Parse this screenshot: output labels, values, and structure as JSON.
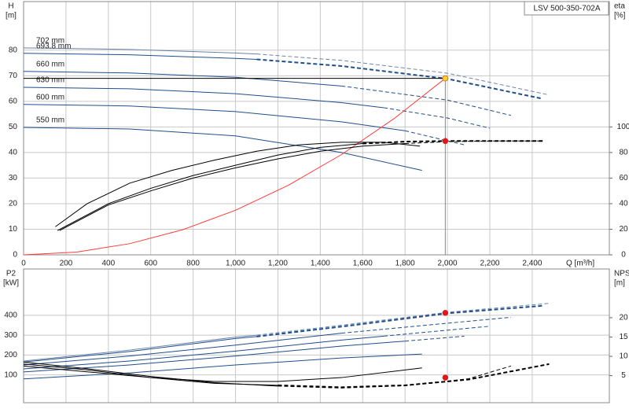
{
  "chart_data": [
    {
      "type": "line",
      "title": "LSV 500-350-702A",
      "ylabel": "H",
      "yunit": "[m]",
      "y2label": "eta",
      "y2unit": "[%]",
      "xlabel": "Q [m³/h]",
      "xlim": [
        0,
        2764
      ],
      "xtick_labels": true,
      "xticks": [
        0,
        200,
        400,
        600,
        800,
        {
          "value": 1000,
          "label": "1,000"
        },
        {
          "value": 1200,
          "label": "1,200"
        },
        {
          "value": 1400,
          "label": "1,400"
        },
        {
          "value": 1600,
          "label": "1,600"
        },
        {
          "value": 1800,
          "label": "1,800"
        },
        {
          "value": 2000,
          "label": "2,000"
        },
        {
          "value": 2200,
          "label": "2,200"
        },
        {
          "value": 2400,
          "label": "2,400"
        }
      ],
      "ylim": [
        0,
        99
      ],
      "yticks": [
        0,
        10,
        20,
        30,
        40,
        50,
        60,
        70,
        80
      ],
      "y2lim": [
        0,
        198
      ],
      "y2ticks": [
        0,
        20,
        40,
        60,
        80,
        100
      ],
      "grid": true,
      "series": [
        {
          "name": "702 mm",
          "color": "#6a84a8",
          "segments": [
            {
              "dash": false,
              "x": [
                0,
                500,
                1000,
                1100
              ],
              "values": [
                80.9,
                80.3,
                78.9,
                78.5
              ]
            },
            {
              "dash": true,
              "x": [
                1100,
                1500,
                2000,
                2480
              ],
              "values": [
                78.5,
                76,
                71,
                62.5
              ]
            }
          ]
        },
        {
          "name": "693.8 mm",
          "color": "#1f4e8c",
          "segments": [
            {
              "dash": false,
              "x": [
                0,
                500,
                1000,
                1100
              ],
              "values": [
                78.8,
                78.2,
                76.8,
                76.4
              ]
            },
            {
              "dash": true,
              "width": 2,
              "x": [
                1100,
                1500,
                2000,
                2450
              ],
              "values": [
                76.4,
                73.8,
                68.8,
                61
              ]
            }
          ]
        },
        {
          "name": "660 mm",
          "color": "#1f4e8c",
          "segments": [
            {
              "dash": false,
              "x": [
                0,
                500,
                1000,
                1500
              ],
              "values": [
                71.7,
                71.1,
                69.4,
                66
              ]
            },
            {
              "dash": true,
              "x": [
                1500,
                2000,
                2300
              ],
              "values": [
                66,
                60.5,
                54.5
              ]
            }
          ]
        },
        {
          "name": "630 mm",
          "color": "#1f4e8c",
          "segments": [
            {
              "dash": false,
              "x": [
                0,
                500,
                1000,
                1500,
                1700
              ],
              "values": [
                65.5,
                64.9,
                63,
                59.5,
                57.5
              ]
            },
            {
              "dash": true,
              "x": [
                1700,
                2000,
                2200
              ],
              "values": [
                57.5,
                53.5,
                49.5
              ]
            }
          ]
        },
        {
          "name": "600 mm",
          "color": "#1f4e8c",
          "segments": [
            {
              "dash": false,
              "x": [
                0,
                500,
                1000,
                1500,
                1800
              ],
              "values": [
                58.8,
                58.2,
                56,
                52,
                48.5
              ]
            },
            {
              "dash": true,
              "x": [
                1800,
                2080
              ],
              "values": [
                48.5,
                43
              ]
            }
          ]
        },
        {
          "name": "550 mm",
          "color": "#1f4e8c",
          "x": [
            0,
            500,
            1000,
            1500,
            1880
          ],
          "values": [
            49.8,
            49.2,
            46.5,
            40,
            33
          ]
        },
        {
          "color": "#ff3b3b",
          "x": [
            0,
            250,
            500,
            750,
            1000,
            1250,
            1500,
            1750,
            1990
          ],
          "values": [
            0,
            1.09,
            4.36,
            9.8,
            17.42,
            27.22,
            39.2,
            53.36,
            69
          ]
        },
        {
          "color": "#000000",
          "x": [
            0,
            1990
          ],
          "values": [
            69,
            69
          ]
        },
        {
          "color": "#888888",
          "x": [
            1990,
            1990
          ],
          "values": [
            69,
            0
          ]
        },
        {
          "color": "#000000",
          "axis": "y2",
          "x": [
            150,
            300,
            500,
            700,
            900,
            1100,
            1300,
            1500,
            1700,
            1870
          ],
          "values": [
            22,
            40,
            56,
            66,
            74,
            81,
            86,
            88,
            88,
            85
          ]
        },
        {
          "color": "#000000",
          "axis": "y2",
          "segments": [
            {
              "dash": false,
              "x": [
                160,
                400,
                600,
                800,
                1000,
                1200,
                1400,
                1600
              ],
              "values": [
                19,
                40,
                52,
                62,
                70,
                78,
                84,
                87
              ]
            },
            {
              "dash": true,
              "width": 2,
              "x": [
                1600,
                1800,
                2000,
                2200,
                2450
              ],
              "values": [
                87,
                88.5,
                89,
                89,
                89
              ]
            }
          ]
        },
        {
          "color": "#000000",
          "axis": "y2",
          "segments": [
            {
              "dash": false,
              "x": [
                170,
                400,
                600,
                800,
                1000,
                1200,
                1400,
                1600,
                1800
              ],
              "values": [
                19,
                39,
                50,
                60,
                68,
                75,
                81,
                85,
                87
              ]
            },
            {
              "dash": true,
              "x": [
                1800,
                2000,
                2200,
                2450
              ],
              "values": [
                87,
                88.5,
                89,
                89
              ]
            }
          ]
        }
      ],
      "markers": [
        {
          "x": 1990,
          "y": 69,
          "color": "#ffd21f"
        },
        {
          "x": 1990,
          "y": 89,
          "axis": "y2",
          "color": "#e8121e"
        }
      ]
    },
    {
      "type": "line",
      "ylabel": "P2",
      "yunit": "[kW]",
      "y2label": "NPSH",
      "y2unit": "[m]",
      "xlim": [
        0,
        2764
      ],
      "xtick_labels": false,
      "xticks": [
        0,
        200,
        400,
        600,
        800,
        1000,
        1200,
        1400,
        1600,
        1800,
        2000,
        2200,
        2400
      ],
      "ylim": [
        -40,
        633
      ],
      "yticks": [
        100,
        200,
        300,
        400
      ],
      "y2lim": [
        -2,
        32.6
      ],
      "y2ticks": [
        5,
        10,
        15,
        20
      ],
      "grid": true,
      "series": [
        {
          "color": "#6a84a8",
          "segments": [
            {
              "dash": false,
              "x": [
                0,
                500,
                1000,
                1100
              ],
              "values": [
                170,
                225,
                290,
                300
              ]
            },
            {
              "dash": true,
              "x": [
                1100,
                1500,
                2000,
                2480
              ],
              "values": [
                300,
                350,
                415,
                460
              ]
            }
          ]
        },
        {
          "color": "#1f4e8c",
          "segments": [
            {
              "dash": false,
              "x": [
                0,
                500,
                1000,
                1100
              ],
              "values": [
                165,
                218,
                283,
                293
              ]
            },
            {
              "dash": true,
              "width": 2,
              "x": [
                1100,
                1500,
                2000,
                2450
              ],
              "values": [
                293,
                343,
                410,
                448
              ]
            }
          ]
        },
        {
          "color": "#1f4e8c",
          "segments": [
            {
              "dash": false,
              "x": [
                0,
                500,
                1000,
                1500
              ],
              "values": [
                150,
                195,
                250,
                310
              ]
            },
            {
              "dash": true,
              "x": [
                1500,
                2000,
                2300
              ],
              "values": [
                310,
                360,
                390
              ]
            }
          ]
        },
        {
          "color": "#1f4e8c",
          "segments": [
            {
              "dash": false,
              "x": [
                0,
                500,
                1000,
                1500,
                1700
              ],
              "values": [
                130,
                170,
                220,
                275,
                295
              ]
            },
            {
              "dash": true,
              "x": [
                1700,
                2000,
                2200
              ],
              "values": [
                295,
                325,
                345
              ]
            }
          ]
        },
        {
          "color": "#1f4e8c",
          "segments": [
            {
              "dash": false,
              "x": [
                0,
                500,
                1000,
                1500,
                1800
              ],
              "values": [
                115,
                150,
                195,
                245,
                270
              ]
            },
            {
              "dash": true,
              "x": [
                1800,
                2080
              ],
              "values": [
                270,
                295
              ]
            }
          ]
        },
        {
          "color": "#1f4e8c",
          "x": [
            0,
            500,
            1000,
            1500,
            1880
          ],
          "values": [
            80,
            110,
            150,
            185,
            205
          ]
        },
        {
          "color": "#000000",
          "axis": "y2",
          "x": [
            0,
            300,
            600,
            900,
            1200,
            1500,
            1880
          ],
          "values": [
            7.5,
            6,
            4.5,
            3.5,
            3.5,
            4.5,
            7
          ]
        },
        {
          "color": "#000000",
          "axis": "y2",
          "segments": [
            {
              "dash": false,
              "x": [
                0,
                300,
                600,
                900,
                1200
              ],
              "values": [
                8,
                6.5,
                4.5,
                3,
                2.5
              ]
            },
            {
              "dash": true,
              "width": 2,
              "x": [
                1200,
                1500,
                1800,
                2100,
                2480
              ],
              "values": [
                2.5,
                2,
                2.5,
                4,
                8
              ]
            }
          ]
        },
        {
          "color": "#000000",
          "axis": "y2",
          "segments": [
            {
              "dash": false,
              "x": [
                0,
                300,
                600,
                900,
                1200
              ],
              "values": [
                8.5,
                6.8,
                4.8,
                3.2,
                2.3
              ]
            },
            {
              "dash": true,
              "x": [
                1200,
                1500,
                1800,
                2100,
                2300
              ],
              "values": [
                2.3,
                1.8,
                2.4,
                4.2,
                7.5
              ]
            }
          ]
        }
      ],
      "markers": [
        {
          "x": 1990,
          "y": 412,
          "color": "#e8121e"
        },
        {
          "x": 1990,
          "y": 4.5,
          "axis": "y2",
          "color": "#e8121e"
        }
      ]
    }
  ]
}
